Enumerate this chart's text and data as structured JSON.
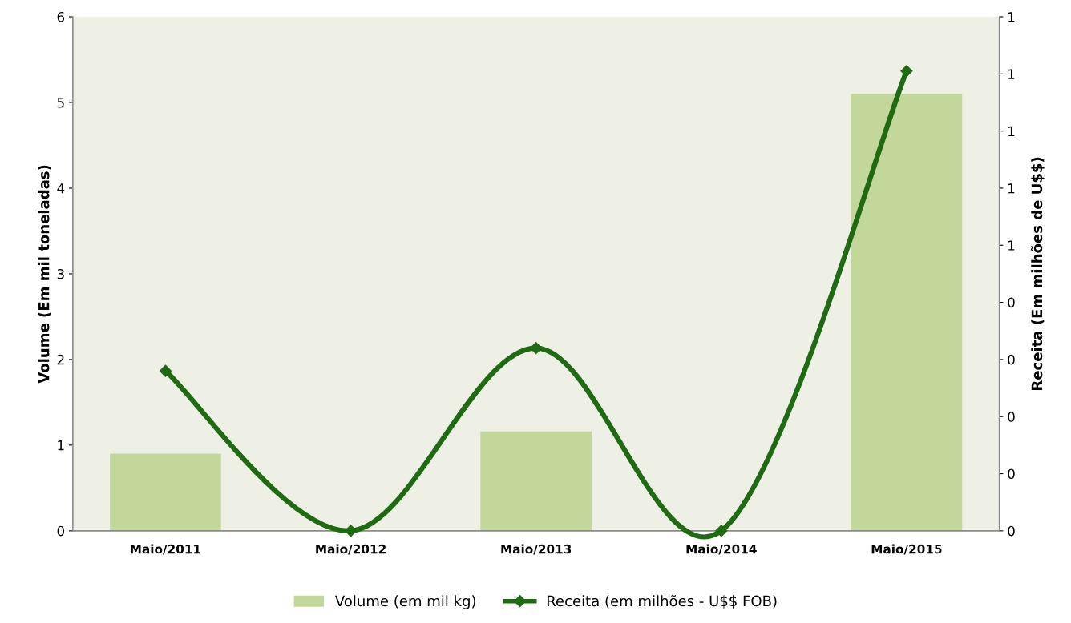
{
  "chart_data": {
    "type": "bar",
    "ylabel": "Volume (Em mil toneladas)",
    "y2label": "Receita (Em milhões de U$$)",
    "categories": [
      "Maio/2011",
      "Maio/2012",
      "Maio/2013",
      "Maio/2014",
      "Maio/2015"
    ],
    "series": [
      {
        "name": "Volume (em mil kg)",
        "color": "#c4d79b",
        "values": [
          0.9,
          0,
          1.16,
          0,
          5.1
        ]
      },
      {
        "name": "Receita (em milhões - U$$ FOB)",
        "type": "line",
        "axis": "y2",
        "color": "#1e6b12",
        "marker": "diamond",
        "values": [
          0.28,
          0,
          0.32,
          0,
          0.805
        ]
      }
    ],
    "ylim": [
      0,
      6
    ],
    "yticks": [
      0,
      1,
      2,
      3,
      4,
      5,
      6
    ],
    "y2lim": [
      0,
      0.9
    ],
    "y2ticks": [
      0,
      {
        "value": 0.1,
        "label": "0"
      },
      {
        "value": 0.2,
        "label": "0"
      },
      {
        "value": 0.3,
        "label": "0"
      },
      {
        "value": 0.4,
        "label": "0"
      },
      {
        "value": 0.5,
        "label": "1"
      },
      {
        "value": 0.6,
        "label": "1"
      },
      {
        "value": 0.7,
        "label": "1"
      },
      {
        "value": 0.8,
        "label": "1"
      },
      {
        "value": 0.9,
        "label": "1"
      }
    ],
    "grid": false,
    "legend": "bottom"
  }
}
